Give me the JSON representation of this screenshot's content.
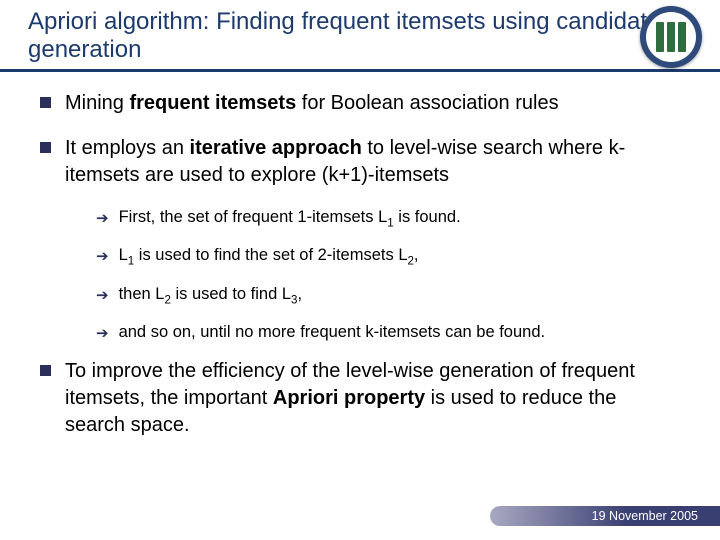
{
  "colors": {
    "title": "#1d3a6e",
    "underline": "#1d3a6e",
    "bullet": "#2a2f5a",
    "arrow": "#2a2f5a",
    "logo_bg": "#2e4a7a",
    "logo_bar": "#2e6e3e",
    "footer_bg_start": "#a9a9c2",
    "footer_bg_end": "#3a3f72"
  },
  "title_html": "Apriori algorithm: Finding frequent itemsets using candidate generation",
  "bullets": [
    {
      "html": "Mining <b>frequent itemsets</b> for Boolean association rules"
    },
    {
      "html": "It employs an <b>iterative approach</b> to level-wise search where k-itemsets are used to explore (k+1)-itemsets",
      "subs": [
        {
          "html": "First, the set of frequent 1-itemsets L<span class=\"sub-num\">1</span> is found."
        },
        {
          "html": "L<span class=\"sub-num\">1</span> is used to find the set of 2-itemsets L<span class=\"sub-num\">2</span>,"
        },
        {
          "html": "then L<span class=\"sub-num\">2</span> is used to find L<span class=\"sub-num\">3</span>,"
        },
        {
          "html": "and so on, until no more frequent k-itemsets can be found."
        }
      ]
    },
    {
      "html": "To improve the efficiency of the level-wise generation of frequent itemsets, the important <b>Apriori property</b> is used to reduce the search space."
    }
  ],
  "footer_date": "19 November 2005"
}
